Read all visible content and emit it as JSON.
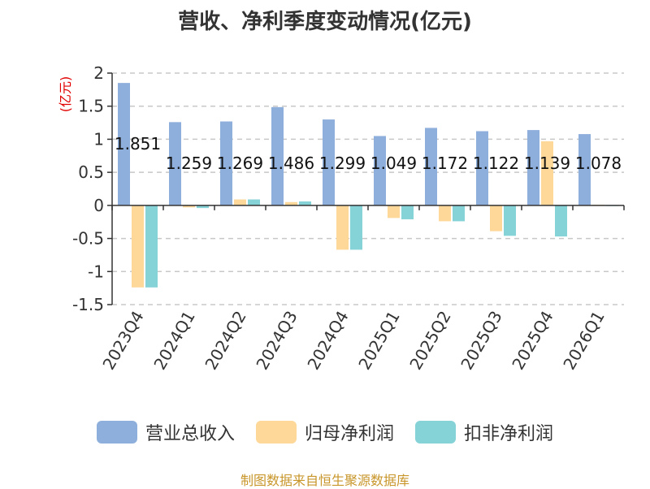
{
  "chart_data": {
    "type": "bar",
    "title": "营收、净利季度变动情况(亿元)",
    "ylabel": "(亿元)",
    "xlabel": "",
    "ylim": [
      -1.5,
      2
    ],
    "yticks": [
      2,
      1.5,
      1,
      0.5,
      0,
      -0.5,
      -1,
      -1.5
    ],
    "grid": true,
    "legend_position": "bottom",
    "categories": [
      "2023Q4",
      "2024Q1",
      "2024Q2",
      "2024Q3",
      "2024Q4",
      "2025Q1",
      "2025Q2",
      "2025Q3",
      "2025Q4",
      "2026Q1"
    ],
    "series": [
      {
        "name": "营业总收入",
        "color": "#8eaedc",
        "values": [
          1.851,
          1.259,
          1.269,
          1.486,
          1.299,
          1.049,
          1.172,
          1.122,
          1.139,
          1.078
        ],
        "labels": [
          "1.851",
          "1.259",
          "1.269",
          "1.486",
          "1.299",
          "1.049",
          "1.172",
          "1.122",
          "1.139",
          "1.078"
        ]
      },
      {
        "name": "归母净利润",
        "color": "#fdd899",
        "values": [
          -1.24,
          -0.03,
          0.09,
          0.05,
          -0.67,
          -0.19,
          -0.24,
          -0.39,
          0.97,
          0.01
        ]
      },
      {
        "name": "扣非净利润",
        "color": "#85d3d7",
        "values": [
          -1.24,
          -0.04,
          0.09,
          0.06,
          -0.67,
          -0.21,
          -0.24,
          -0.46,
          -0.47,
          0.0
        ]
      }
    ]
  },
  "footer": "制图数据来自恒生聚源数据库"
}
